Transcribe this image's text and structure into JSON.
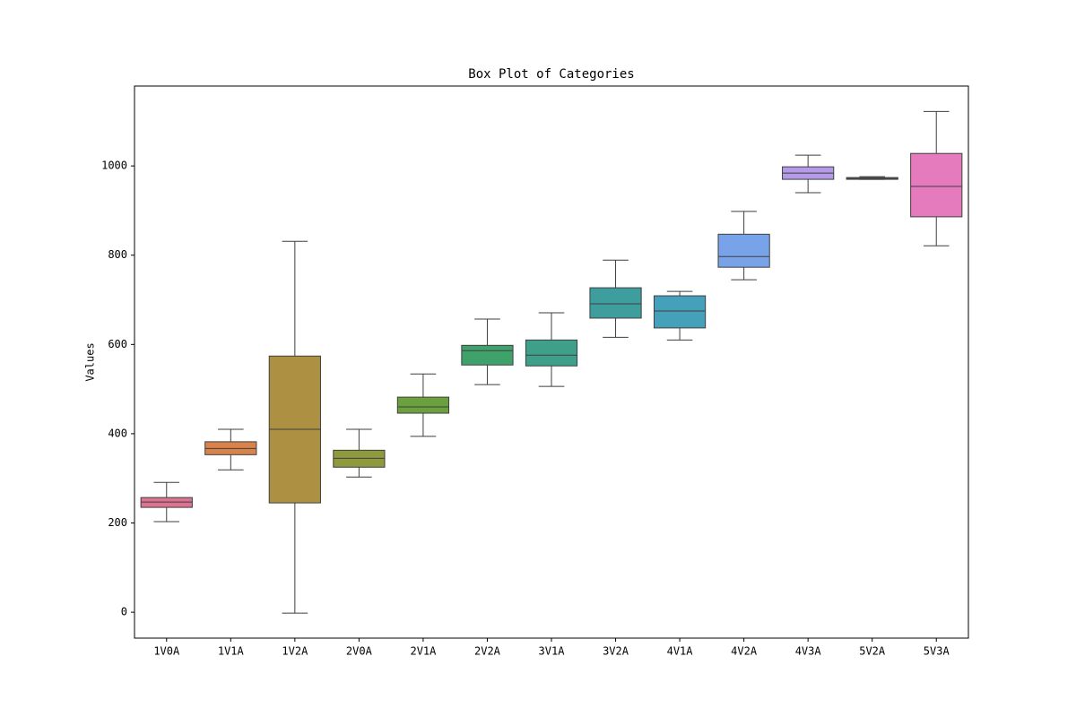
{
  "chart_data": {
    "type": "box",
    "title": "Box Plot of Categories",
    "y_label": "Values",
    "categories": [
      "1V0A",
      "1V1A",
      "1V2A",
      "2V0A",
      "2V1A",
      "2V2A",
      "3V1A",
      "3V2A",
      "4V1A",
      "4V2A",
      "4V3A",
      "5V2A",
      "5V3A"
    ],
    "colors": [
      "#dc7390",
      "#d9834a",
      "#ae9042",
      "#8f9a3e",
      "#6aa13e",
      "#3ea26a",
      "#3ea08a",
      "#3e9e9e",
      "#45a0ba",
      "#78a3e8",
      "#b59ae9",
      "#d87ed8",
      "#e57abd"
    ],
    "boxes": [
      {
        "low": 203,
        "q1": 235,
        "median": 247,
        "q3": 257,
        "high": 291
      },
      {
        "low": 319,
        "q1": 353,
        "median": 367,
        "q3": 382,
        "high": 410
      },
      {
        "low": -2,
        "q1": 245,
        "median": 410,
        "q3": 574,
        "high": 831
      },
      {
        "low": 303,
        "q1": 325,
        "median": 345,
        "q3": 363,
        "high": 410
      },
      {
        "low": 394,
        "q1": 446,
        "median": 460,
        "q3": 482,
        "high": 534
      },
      {
        "low": 510,
        "q1": 554,
        "median": 586,
        "q3": 598,
        "high": 657
      },
      {
        "low": 506,
        "q1": 552,
        "median": 576,
        "q3": 610,
        "high": 671
      },
      {
        "low": 616,
        "q1": 659,
        "median": 691,
        "q3": 727,
        "high": 789
      },
      {
        "low": 610,
        "q1": 637,
        "median": 675,
        "q3": 709,
        "high": 719
      },
      {
        "low": 745,
        "q1": 773,
        "median": 797,
        "q3": 847,
        "high": 898
      },
      {
        "low": 940,
        "q1": 970,
        "median": 984,
        "q3": 998,
        "high": 1024
      },
      {
        "low": 970,
        "q1": 970,
        "median": 972,
        "q3": 974,
        "high": 976
      },
      {
        "low": 821,
        "q1": 886,
        "median": 954,
        "q3": 1028,
        "high": 1122
      }
    ],
    "ylim": [
      -58,
      1179
    ],
    "yticks": [
      0,
      200,
      400,
      600,
      800,
      1000
    ]
  }
}
